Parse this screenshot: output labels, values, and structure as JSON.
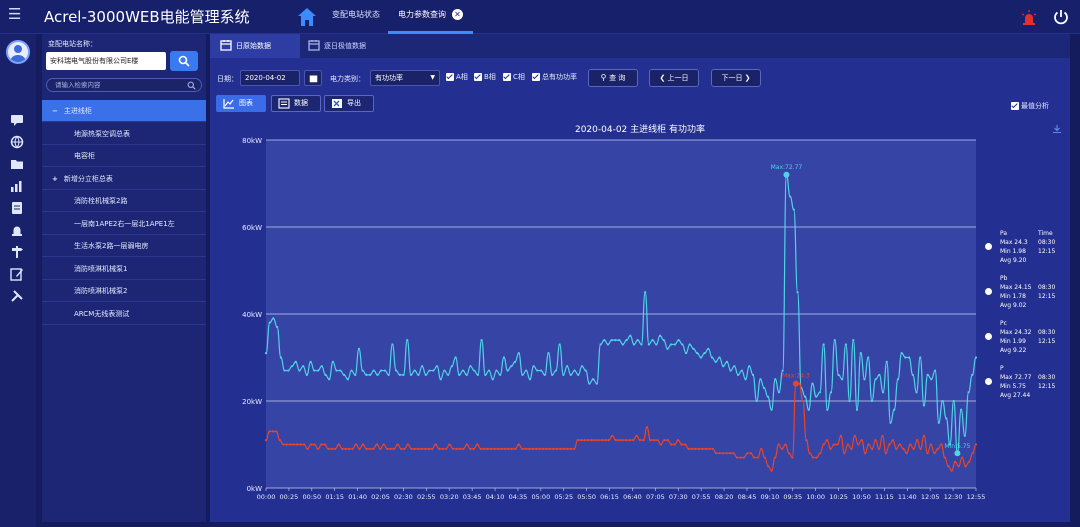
{
  "header": {
    "menu_icon": "hamburger-icon",
    "title": "Acrel-3000WEB电能管理系统",
    "tabs": [
      {
        "label": "变配电站状态",
        "active": false
      },
      {
        "label": "电力参数查询",
        "active": true,
        "closable": true
      }
    ]
  },
  "rail_icons": [
    "message-icon",
    "globe-icon",
    "folder-icon",
    "bar-chart-icon",
    "document-icon",
    "alarm-light-icon",
    "signpost-icon",
    "edit-icon",
    "tools-icon"
  ],
  "tree": {
    "station_label": "变配电站名称：",
    "station_value": "安科瑞电气股份有限公司E楼",
    "search_placeholder": "请输入检索内容",
    "nodes": [
      {
        "label": "主进线柜",
        "prefix": "−",
        "level": 0,
        "selected": true
      },
      {
        "label": "地源热泵空调总表",
        "prefix": "",
        "level": 1,
        "selected": false
      },
      {
        "label": "电容柜",
        "prefix": "",
        "level": 1,
        "selected": false
      },
      {
        "label": "新增分立柜总表",
        "prefix": "+",
        "level": 0,
        "selected": false
      },
      {
        "label": "消防栓机械泵2路",
        "prefix": "",
        "level": 1,
        "selected": false
      },
      {
        "label": "一层南1APE2右一层北1APE1左",
        "prefix": "",
        "level": 1,
        "selected": false
      },
      {
        "label": "生活水泵2路一层弱电房",
        "prefix": "",
        "level": 1,
        "selected": false
      },
      {
        "label": "消防喷淋机械泵1",
        "prefix": "",
        "level": 1,
        "selected": false
      },
      {
        "label": "消防喷淋机械泵2",
        "prefix": "",
        "level": 1,
        "selected": false
      },
      {
        "label": "ARCM无线表测试",
        "prefix": "",
        "level": 1,
        "selected": false
      }
    ]
  },
  "subtabs": [
    {
      "label": "日原始数据",
      "active": true
    },
    {
      "label": "逐日极值数据",
      "active": false
    }
  ],
  "controls": {
    "date_label": "日期：",
    "date_value": "2020-04-02",
    "type_label": "电力类别：",
    "type_value": "有功功率",
    "phases": [
      "A相",
      "B相",
      "C相",
      "总有功功率"
    ],
    "query": "查 询",
    "prev": "上一日",
    "next": "下一日",
    "views": [
      "图表",
      "数据",
      "导出"
    ],
    "extreme_label": "最值分析"
  },
  "chart_data": {
    "type": "line",
    "title": "2020-04-02  主进线柜  有功功率",
    "ylim": [
      0,
      80
    ],
    "y_ticks": [
      "0kW",
      "20kW",
      "40kW",
      "60kW",
      "80kW"
    ],
    "x_ticks": [
      "00:00",
      "00:25",
      "00:50",
      "01:15",
      "01:40",
      "02:05",
      "02:30",
      "02:55",
      "03:20",
      "03:45",
      "04:10",
      "04:35",
      "05:00",
      "05:25",
      "05:50",
      "06:15",
      "06:40",
      "07:05",
      "07:30",
      "07:55",
      "08:20",
      "08:45",
      "09:10",
      "09:35",
      "10:00",
      "10:25",
      "10:50",
      "11:15",
      "11:40",
      "12:05",
      "12:30",
      "12:55"
    ],
    "series": [
      {
        "name": "P",
        "color": "#4fd4e6",
        "values": [
          31,
          38,
          39,
          37,
          30,
          27,
          27,
          28,
          29,
          27,
          28,
          26,
          29,
          27,
          27,
          28,
          26,
          25,
          29,
          27,
          27,
          26,
          25,
          27,
          26,
          32,
          27,
          26,
          26,
          27,
          26,
          27,
          27,
          26,
          33,
          27,
          26,
          26,
          34,
          26,
          27,
          26,
          28,
          26,
          27,
          27,
          28,
          25,
          27,
          26,
          28,
          30,
          26,
          27,
          26,
          28,
          27,
          26,
          34,
          26,
          27,
          25,
          27,
          26,
          30,
          27,
          28,
          29,
          31,
          26,
          27,
          25,
          28,
          27,
          27,
          26,
          31,
          26,
          27,
          33,
          26,
          28,
          26,
          27,
          26,
          28,
          27,
          24,
          25,
          24,
          33,
          34,
          33,
          34,
          34,
          34,
          33,
          34,
          35,
          33,
          34,
          33,
          45,
          33,
          34,
          33,
          35,
          34,
          32,
          33,
          33,
          34,
          33,
          31,
          33,
          32,
          31,
          30,
          31,
          32,
          30,
          29,
          30,
          28,
          29,
          27,
          28,
          26,
          27,
          25,
          28,
          26,
          20,
          25,
          23,
          21,
          18,
          25,
          22,
          27,
          72,
          67,
          64,
          45,
          23,
          21,
          18,
          24,
          21,
          22,
          33,
          18,
          22,
          34,
          26,
          25,
          33,
          20,
          34,
          18,
          31,
          25,
          30,
          20,
          25,
          26,
          22,
          29,
          15,
          18,
          25,
          31,
          30,
          30,
          26,
          22,
          30,
          19,
          26,
          25,
          27,
          15,
          20,
          16,
          10,
          20,
          8,
          18,
          12,
          22,
          26,
          30
        ],
        "max": "72.77",
        "max_time": "08:30",
        "min": "5.75",
        "min_time": "12:15",
        "avg": "27.44"
      },
      {
        "name": "Pa",
        "color": "#e8452a",
        "values": [
          11,
          13,
          13,
          13,
          11,
          10,
          10,
          10,
          10,
          10,
          10,
          10,
          9,
          10,
          10,
          9,
          10,
          10,
          9,
          9,
          9,
          10,
          9,
          9,
          9,
          9,
          10,
          9,
          10,
          9,
          9,
          9,
          10,
          9,
          10,
          9,
          9,
          9,
          10,
          9,
          9,
          10,
          9,
          9,
          9,
          9,
          9,
          9,
          9,
          10,
          9,
          9,
          9,
          10,
          9,
          9,
          9,
          9,
          10,
          9,
          9,
          10,
          9,
          9,
          9,
          9,
          9,
          9,
          9,
          9,
          9,
          9,
          9,
          10,
          9,
          9,
          9,
          9,
          9,
          9,
          9,
          9,
          9,
          9,
          9,
          9,
          9,
          9,
          9,
          9,
          11,
          11,
          11,
          11,
          11,
          11,
          11,
          11,
          11,
          11,
          12,
          11,
          11,
          11,
          11,
          11,
          11,
          12,
          11,
          11,
          14,
          11,
          11,
          11,
          10,
          11,
          11,
          10,
          10,
          11,
          10,
          10,
          9,
          9,
          9,
          9,
          9,
          9,
          9,
          9,
          8,
          8,
          8,
          8,
          8,
          8,
          7,
          7,
          7,
          8,
          8,
          7,
          7,
          9,
          7,
          5,
          4,
          7,
          10,
          9,
          10,
          8,
          7,
          24,
          24,
          20,
          11,
          8,
          7,
          7,
          8,
          10,
          11,
          9,
          10,
          10,
          12,
          8,
          10,
          9,
          12,
          10,
          11,
          8,
          10,
          9,
          11,
          9,
          12,
          8,
          10,
          11,
          9,
          10,
          9,
          8,
          10,
          9,
          11,
          9,
          12,
          8,
          10,
          8,
          9,
          10,
          7,
          5,
          4,
          6,
          5,
          7,
          5,
          6,
          8,
          10
        ],
        "max": "24.3",
        "max_time": "08:30",
        "min": "1.98",
        "min_time": "12:15",
        "avg": "9.20"
      },
      {
        "name": "Pb",
        "color": "#ffffff",
        "values": [],
        "max": "24.15",
        "max_time": "08:30",
        "min": "1.78",
        "min_time": "12:15",
        "avg": "9.02"
      },
      {
        "name": "Pc",
        "color": "#ffffff",
        "values": [],
        "max": "24.32",
        "max_time": "08:30",
        "min": "1.99",
        "min_time": "12:15",
        "avg": "9.22"
      }
    ],
    "annotations": [
      {
        "text": "Max:72.77",
        "series": "P"
      },
      {
        "text": "Max:24.3",
        "series": "Pa"
      },
      {
        "text": "Min:5.75",
        "series": "P"
      }
    ],
    "legend": [
      {
        "name": "Pa",
        "max": "Max 24.3",
        "max_time": "08:30",
        "min": "Min 1.98",
        "min_time": "12:15",
        "avg": "Avg 9.20"
      },
      {
        "name": "Pb",
        "max": "Max 24.15",
        "max_time": "08:30",
        "min": "Min 1.78",
        "min_time": "12:15",
        "avg": "Avg 9.02"
      },
      {
        "name": "Pc",
        "max": "Max 24.32",
        "max_time": "08:30",
        "min": "Min 1.99",
        "min_time": "12:15",
        "avg": "Avg 9.22"
      },
      {
        "name": "P",
        "max": "Max 72.77",
        "max_time": "08:30",
        "min": "Min 5.75",
        "min_time": "12:15",
        "avg": "Avg 27.44"
      }
    ],
    "legend_time_header": "Time",
    "grid": true,
    "legend_position": "right"
  }
}
